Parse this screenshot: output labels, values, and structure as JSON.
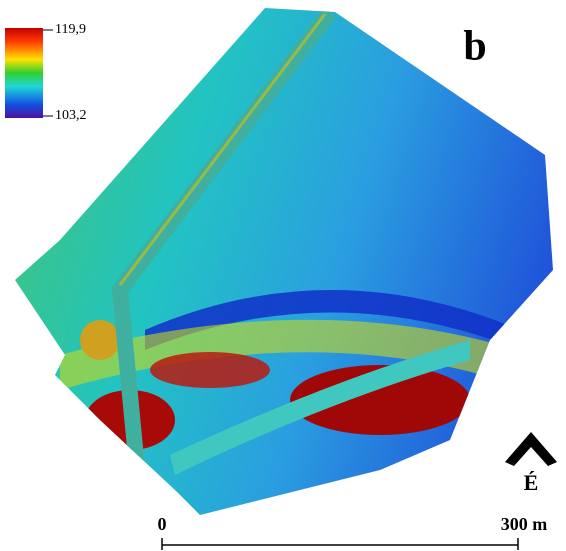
{
  "panel_label": "b",
  "legend": {
    "max_label": "119,9",
    "min_label": "103,2"
  },
  "north_arrow": {
    "label": "É"
  },
  "scale_bar": {
    "start_label": "0",
    "end_label": "300 m"
  }
}
